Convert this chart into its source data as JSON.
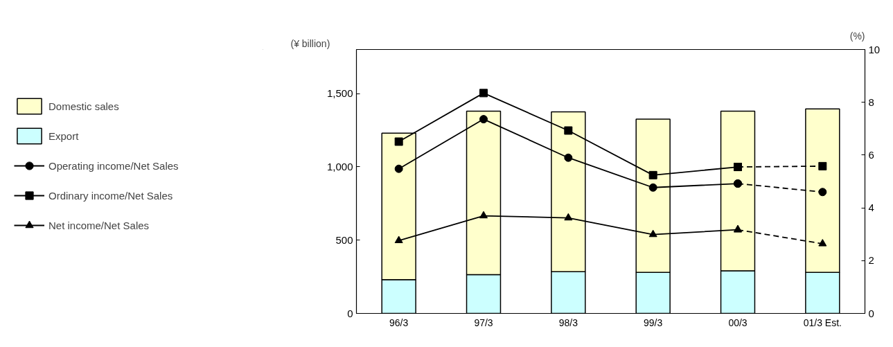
{
  "chart_data": {
    "type": "bar",
    "stacked": true,
    "ylabel": "(¥ billion)",
    "y2label": "(%)",
    "categories": [
      "96/3",
      "97/3",
      "98/3",
      "99/3",
      "00/3",
      "01/3 Est."
    ],
    "ylim": [
      0,
      1800
    ],
    "yticks": [
      0,
      500,
      {
        "value": 1000,
        "label": "1,000"
      },
      {
        "value": 1500,
        "label": "1,500"
      }
    ],
    "y2lim": [
      0,
      10
    ],
    "y2ticks": [
      0,
      2,
      4,
      6,
      8,
      10
    ],
    "grid": false,
    "legend": "left",
    "series": [
      {
        "name": "Export",
        "type": "bar",
        "color": "#ccffff",
        "values": [
          230,
          265,
          285,
          280,
          290,
          280
        ]
      },
      {
        "name": "Domestic sales",
        "type": "bar",
        "color": "#ffffcc",
        "values": [
          1000,
          1115,
          1090,
          1045,
          1090,
          1115
        ]
      },
      {
        "name": "Operating income/Net Sales",
        "type": "line",
        "axis": "y2",
        "color": "#000000",
        "marker": "circle",
        "line_style": "solid",
        "values": [
          5.48,
          7.36,
          5.9,
          4.77,
          4.92,
          null
        ]
      },
      {
        "name": "Ordinary income/Net Sales",
        "type": "line",
        "axis": "y2",
        "color": "#000000",
        "marker": "square",
        "line_style": "solid",
        "values": [
          6.51,
          8.35,
          6.93,
          5.24,
          5.55,
          null
        ]
      },
      {
        "name": "Net income/Net Sales",
        "type": "line",
        "axis": "y2",
        "color": "#000000",
        "marker": "triangle",
        "line_style": "solid",
        "values": [
          2.76,
          3.7,
          3.62,
          2.99,
          3.17,
          null
        ]
      },
      {
        "type": "line",
        "axis": "y2",
        "color": "#000000",
        "marker": "circle",
        "line_style": "dashed",
        "values": [
          null,
          null,
          null,
          null,
          4.92,
          4.6
        ]
      },
      {
        "type": "line",
        "axis": "y2",
        "color": "#000000",
        "marker": "square",
        "line_style": "dashed",
        "values": [
          null,
          null,
          null,
          null,
          5.55,
          5.58
        ]
      },
      {
        "type": "line",
        "axis": "y2",
        "color": "#000000",
        "marker": "triangle",
        "line_style": "dashed",
        "values": [
          null,
          null,
          null,
          null,
          3.17,
          2.64
        ]
      }
    ]
  }
}
